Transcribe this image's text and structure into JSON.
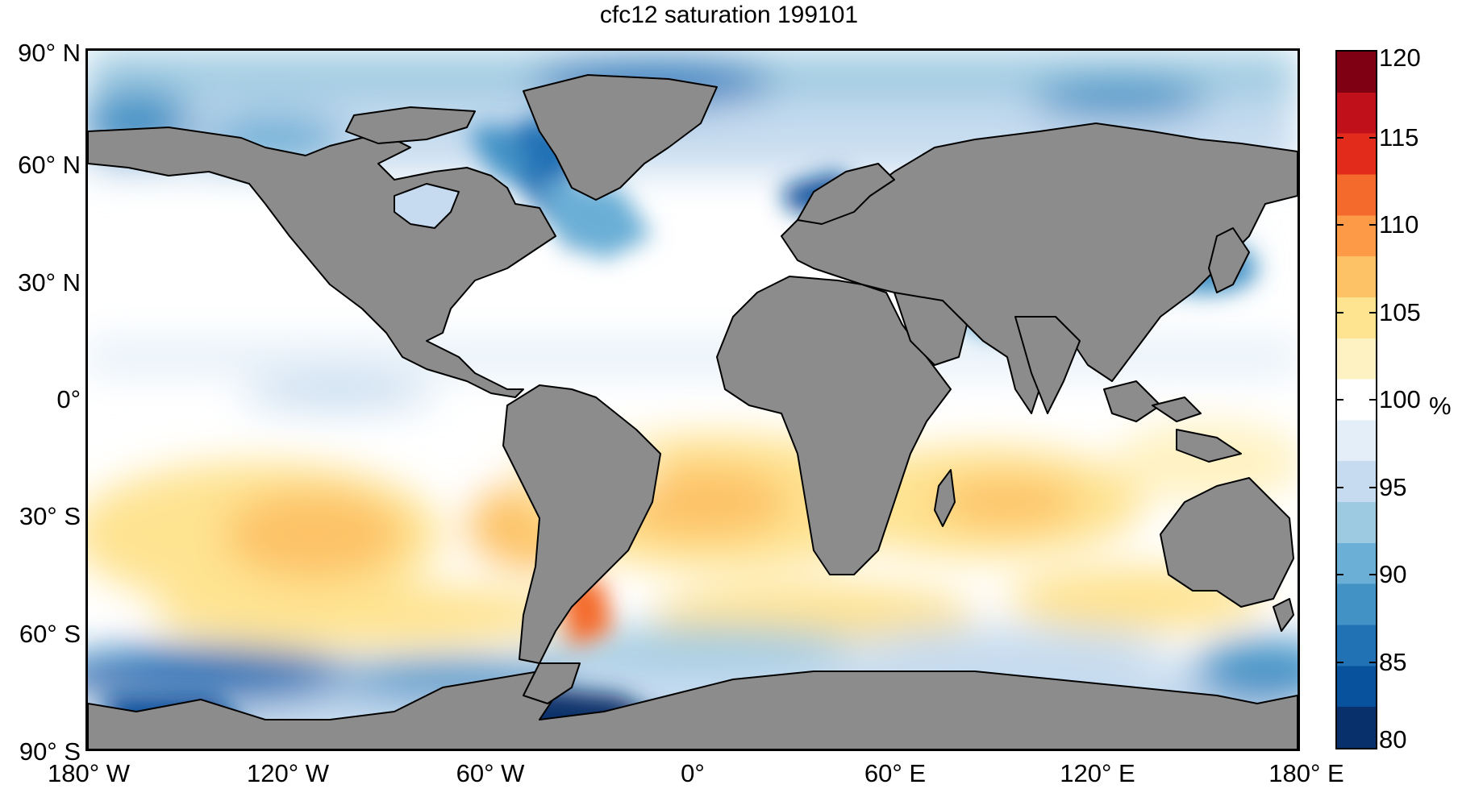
{
  "title": "cfc12 saturation 199101",
  "lat_labels": [
    {
      "text": "90° N",
      "lat": 90
    },
    {
      "text": "60° N",
      "lat": 60
    },
    {
      "text": "30° N",
      "lat": 30
    },
    {
      "text": "0°",
      "lat": 0
    },
    {
      "text": "30° S",
      "lat": -30
    },
    {
      "text": "60° S",
      "lat": -60
    },
    {
      "text": "90° S",
      "lat": -90
    }
  ],
  "lon_labels": [
    {
      "text": "180° W",
      "lon": -180
    },
    {
      "text": "120° W",
      "lon": -120
    },
    {
      "text": "60° W",
      "lon": -60
    },
    {
      "text": "0°",
      "lon": 0
    },
    {
      "text": "60° E",
      "lon": 60
    },
    {
      "text": "120° E",
      "lon": 120
    },
    {
      "text": "180° E",
      "lon": 180
    }
  ],
  "colorbar": {
    "unit": "%",
    "min": 80,
    "max": 120,
    "ticks": [
      {
        "value": 120,
        "text": "120"
      },
      {
        "value": 115,
        "text": "115"
      },
      {
        "value": 110,
        "text": "110"
      },
      {
        "value": 105,
        "text": "105"
      },
      {
        "value": 100,
        "text": "100"
      },
      {
        "value": 95,
        "text": "95"
      },
      {
        "value": 90,
        "text": "90"
      },
      {
        "value": 85,
        "text": "85"
      },
      {
        "value": 80,
        "text": "80"
      }
    ],
    "colors": [
      "#08306b",
      "#08519c",
      "#2171b5",
      "#4292c6",
      "#6baed6",
      "#9ecae1",
      "#c6dbef",
      "#e3eef8",
      "#ffffff",
      "#fff2c2",
      "#fee391",
      "#fdc266",
      "#fd9a48",
      "#f46a2c",
      "#e32b1c",
      "#c0111b",
      "#7f0012"
    ]
  },
  "colors": {
    "land": "#8c8c8c",
    "ocean_neutral": "#ffffff"
  }
}
